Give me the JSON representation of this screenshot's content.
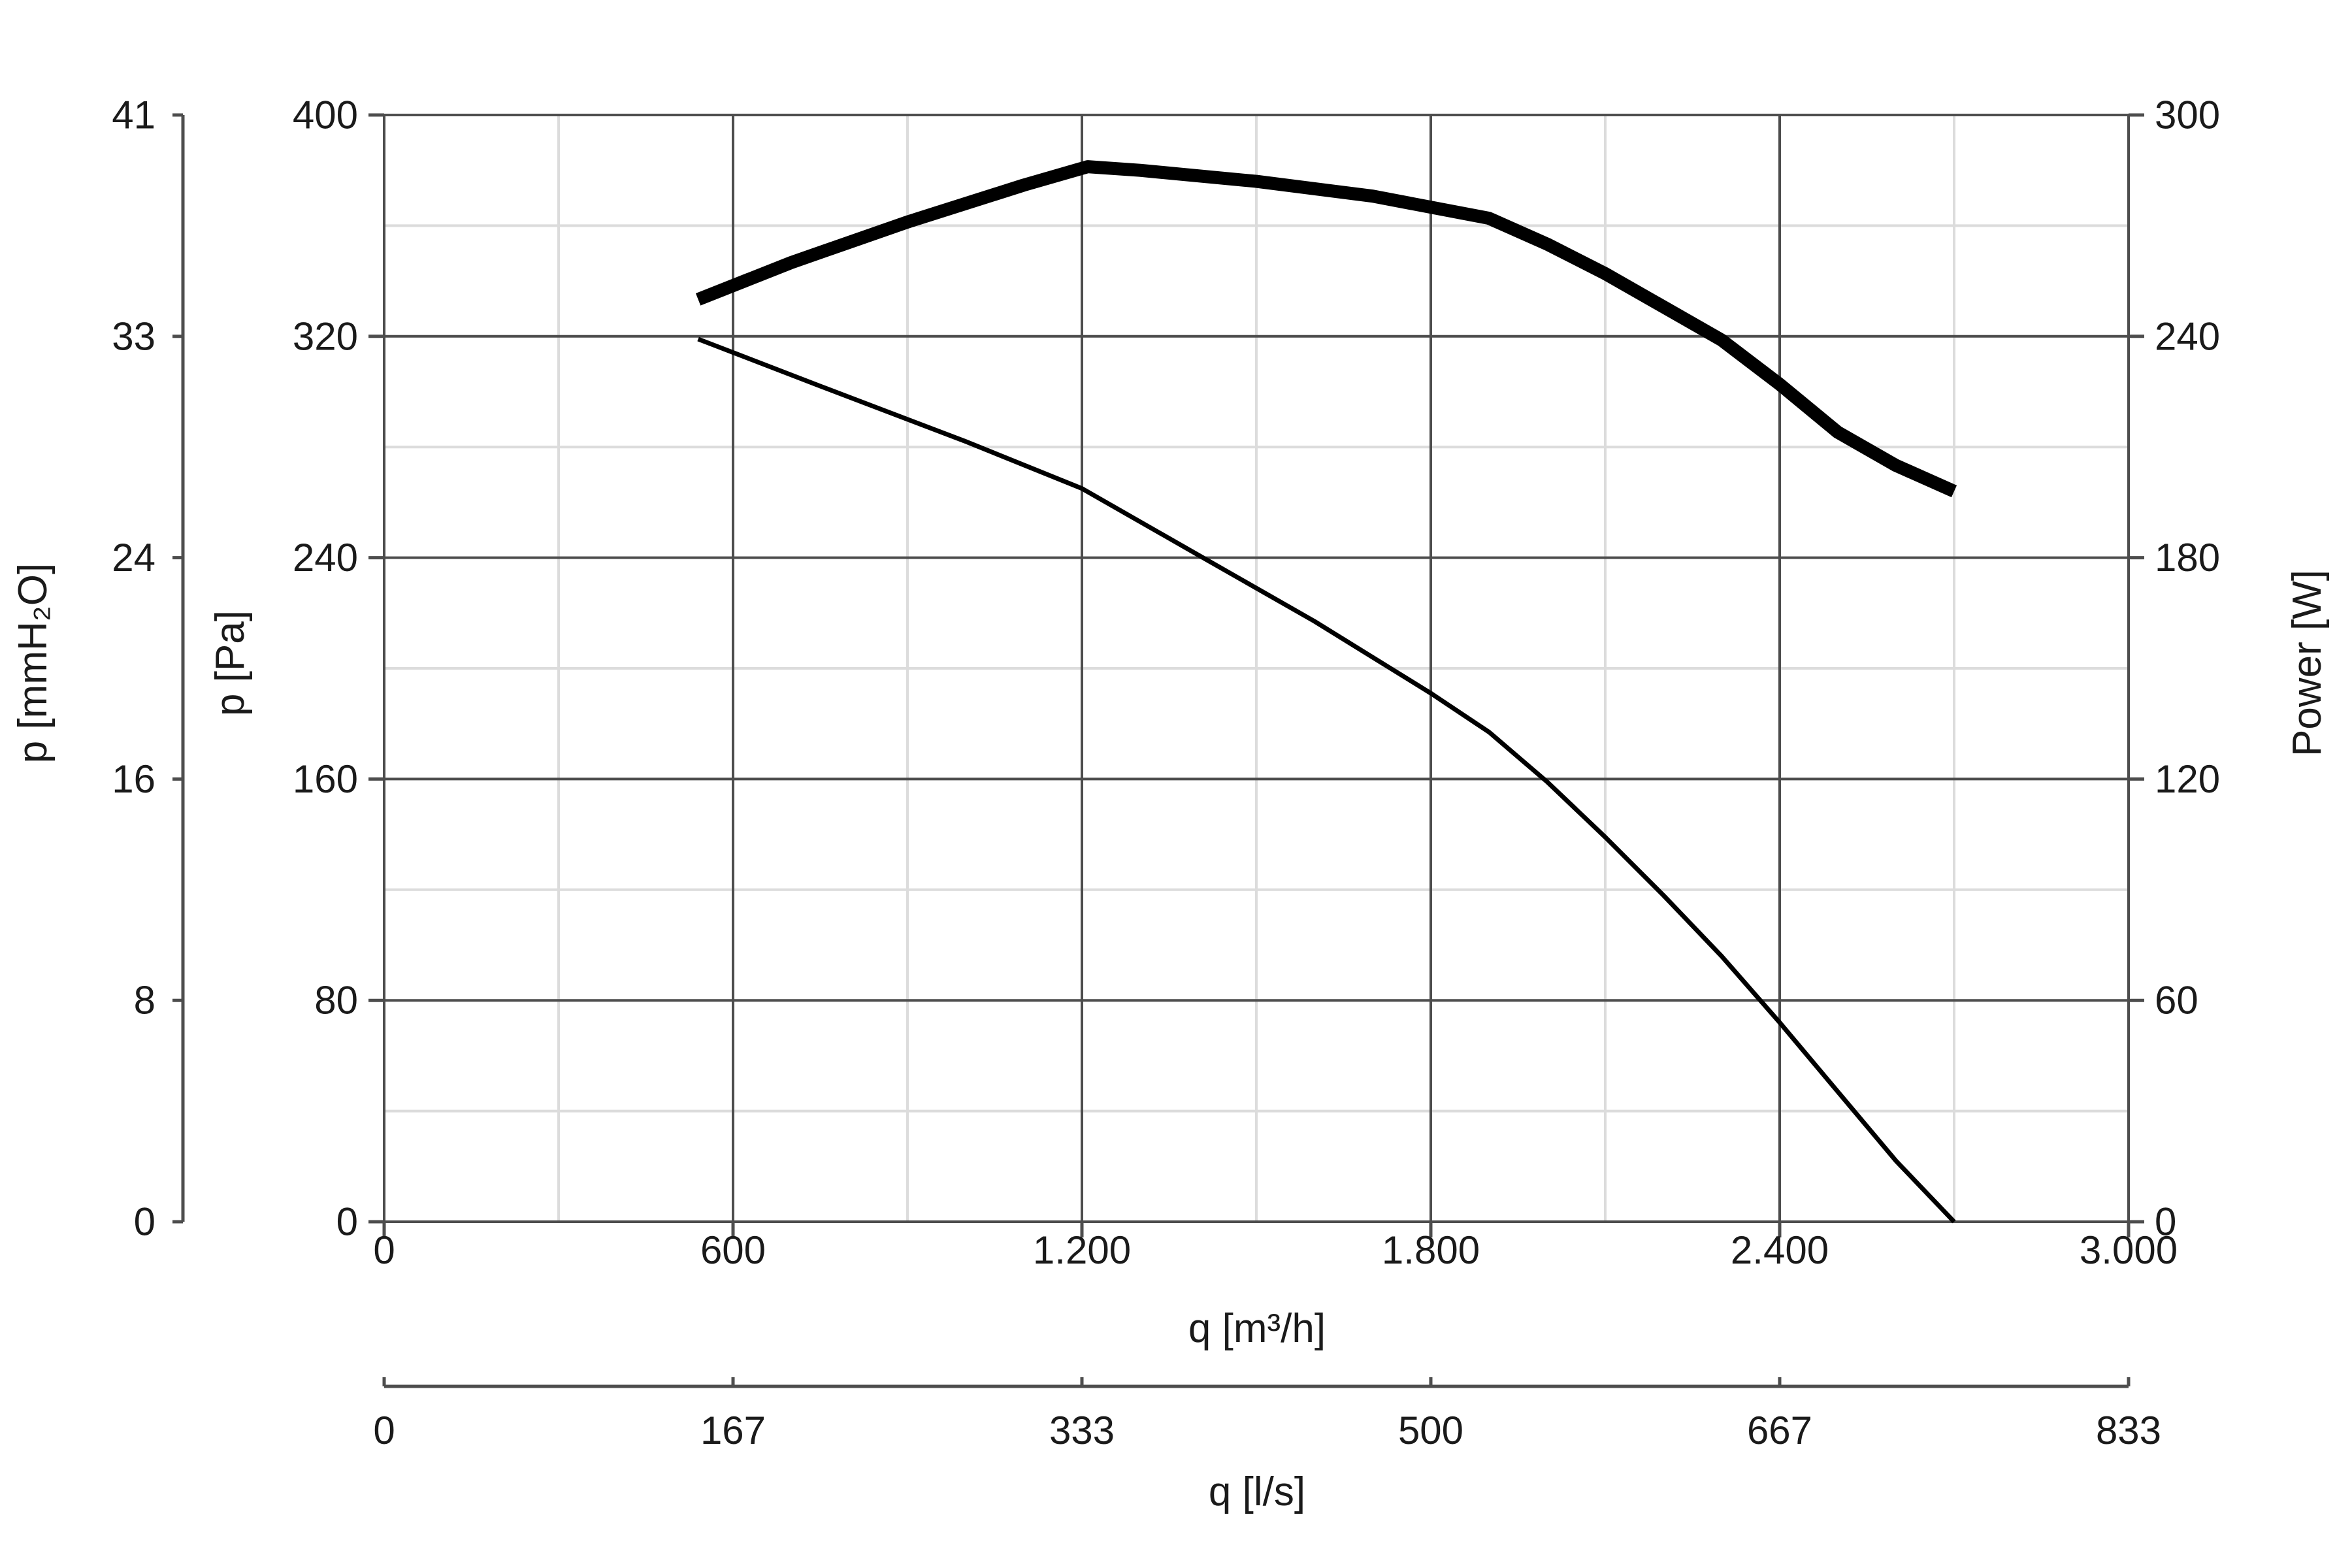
{
  "chart_data": {
    "type": "line",
    "x": {
      "label": "q [m³/h]",
      "range": [
        0,
        3000
      ],
      "ticks": [
        0,
        600,
        1200,
        1800,
        2400,
        3000
      ],
      "tick_labels": [
        "0",
        "600",
        "1.200",
        "1.800",
        "2.400",
        "3.000"
      ]
    },
    "x_secondary": {
      "label": "q [l/s]",
      "range": [
        0,
        833
      ],
      "tick_labels": [
        "0",
        "167",
        "333",
        "500",
        "667",
        "833"
      ]
    },
    "y_left": {
      "label": "p [Pa]",
      "range": [
        0,
        400
      ],
      "ticks": [
        0,
        80,
        160,
        240,
        320,
        400
      ],
      "tick_labels": [
        "0",
        "80",
        "160",
        "240",
        "320",
        "400"
      ]
    },
    "y_left_outer": {
      "label": "p [mmH₂O]",
      "range": [
        0,
        41
      ],
      "tick_labels": [
        "0",
        "8",
        "16",
        "24",
        "33",
        "41"
      ]
    },
    "y_right": {
      "label": "Power [W]",
      "range": [
        0,
        300
      ],
      "ticks": [
        0,
        60,
        120,
        180,
        240,
        300
      ],
      "tick_labels": [
        "0",
        "60",
        "120",
        "180",
        "240",
        "300"
      ]
    },
    "grid": true,
    "series": [
      {
        "axis": "y_left",
        "style": "thin",
        "points": [
          [
            540,
            319
          ],
          [
            750,
            302
          ],
          [
            1000,
            282
          ],
          [
            1200,
            265
          ],
          [
            1400,
            241
          ],
          [
            1600,
            217
          ],
          [
            1800,
            191
          ],
          [
            1900,
            177
          ],
          [
            2000,
            159
          ],
          [
            2100,
            139
          ],
          [
            2200,
            118
          ],
          [
            2300,
            96
          ],
          [
            2400,
            72
          ],
          [
            2500,
            47
          ],
          [
            2600,
            22
          ],
          [
            2700,
            0
          ]
        ]
      },
      {
        "axis": "y_right",
        "style": "thick",
        "points": [
          [
            540,
            250
          ],
          [
            700,
            260
          ],
          [
            900,
            271
          ],
          [
            1100,
            281
          ],
          [
            1210,
            286
          ],
          [
            1300,
            285
          ],
          [
            1500,
            282
          ],
          [
            1700,
            278
          ],
          [
            1900,
            272
          ],
          [
            2000,
            265
          ],
          [
            2100,
            257
          ],
          [
            2200,
            248
          ],
          [
            2300,
            239
          ],
          [
            2400,
            227
          ],
          [
            2500,
            214
          ],
          [
            2600,
            205
          ],
          [
            2700,
            198
          ]
        ]
      }
    ]
  },
  "colors": {
    "curve": "#000000",
    "major_grid": "#4d4d4d",
    "minor_grid": "#dcdcdc",
    "axis": "#4d4d4d"
  }
}
